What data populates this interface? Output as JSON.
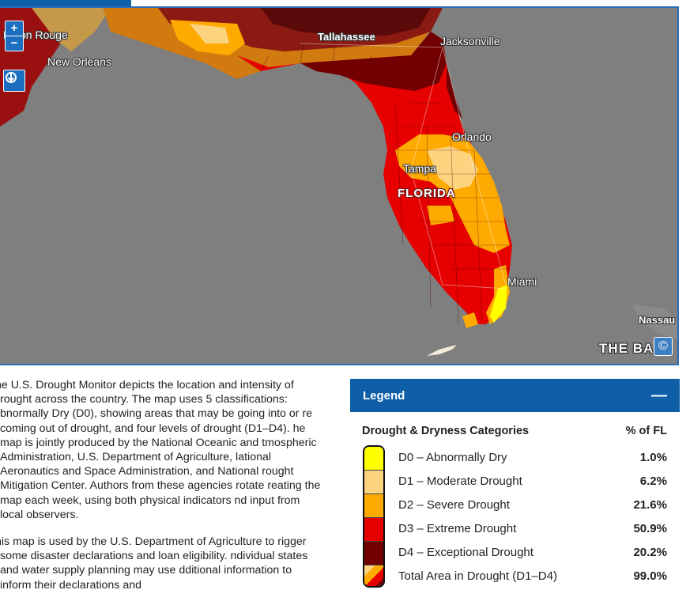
{
  "map": {
    "cities": {
      "baton_rouge": "Baton Rouge",
      "new_orleans": "New Orleans",
      "tallahassee": "Tallahassee",
      "jacksonville": "Jacksonville",
      "orlando": "Orlando",
      "tampa": "Tampa",
      "miami": "Miami",
      "nassau": "Nassau"
    },
    "state_label": "FLORIDA",
    "watermark": "THE BA",
    "zoom_in": "+",
    "zoom_out": "−",
    "tool_icon": "layers-download-icon",
    "attribution_icon": "©"
  },
  "description": {
    "paragraph1": "he U.S. Drought Monitor depicts the location and intensity of rought across the country. The map uses 5 classifications: bnormally Dry (D0), showing areas that may be going into or re coming out of drought, and four levels of drought (D1–D4). he map is jointly produced by the National Oceanic and tmospheric Administration, U.S. Department of Agriculture, lational Aeronautics and Space Administration, and National rought Mitigation Center. Authors from these agencies rotate reating the map each week, using both physical indicators nd input from local observers.",
    "paragraph2": "his map is used by the U.S. Department of Agriculture to rigger some disaster declarations and loan eligibility. ndividual states and water supply planning may use dditional information to inform their declarations and"
  },
  "legend": {
    "title": "Legend",
    "collapse_label": "—",
    "column_category": "Drought & Dryness Categories",
    "column_percent": "% of FL",
    "rows": [
      {
        "label": "D0 – Abnormally Dry",
        "percent": "1.0%",
        "color": "#ffff00"
      },
      {
        "label": "D1 – Moderate Drought",
        "percent": "6.2%",
        "color": "#fcd37f"
      },
      {
        "label": "D2 – Severe Drought",
        "percent": "21.6%",
        "color": "#ffaa00"
      },
      {
        "label": "D3 – Extreme Drought",
        "percent": "50.9%",
        "color": "#e60000"
      },
      {
        "label": "D4 – Exceptional Drought",
        "percent": "20.2%",
        "color": "#730000"
      },
      {
        "label": "Total Area in Drought (D1–D4)",
        "percent": "99.0%",
        "color": "mixed"
      }
    ]
  }
}
